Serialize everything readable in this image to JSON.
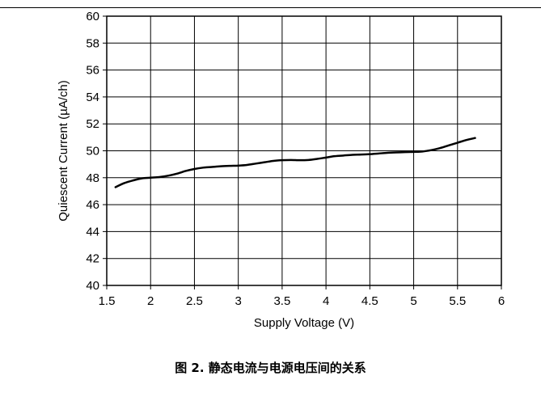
{
  "caption": "图 2. 静态电流与电源电压间的关系",
  "chart_data": {
    "type": "line",
    "title": "",
    "xlabel": "Supply Voltage (V)",
    "ylabel": "Quiescent Current (µA/ch)",
    "xlim": [
      1.5,
      6
    ],
    "ylim": [
      40,
      60
    ],
    "x_ticks": [
      1.5,
      2,
      2.5,
      3,
      3.5,
      4,
      4.5,
      5,
      5.5,
      6
    ],
    "x_tick_labels": [
      "1.5",
      "2",
      "2.5",
      "3",
      "3.5",
      "4",
      "4.5",
      "5",
      "5.5",
      "6"
    ],
    "y_ticks": [
      40,
      42,
      44,
      46,
      48,
      50,
      52,
      54,
      56,
      58,
      60
    ],
    "y_tick_labels": [
      "40",
      "42",
      "44",
      "46",
      "48",
      "50",
      "52",
      "54",
      "56",
      "58",
      "60"
    ],
    "grid": true,
    "series": [
      {
        "color": "#000000",
        "x": [
          1.6,
          1.7,
          1.8,
          1.9,
          2.0,
          2.1,
          2.2,
          2.3,
          2.4,
          2.5,
          2.6,
          2.7,
          2.8,
          2.9,
          3.0,
          3.1,
          3.2,
          3.3,
          3.4,
          3.5,
          3.6,
          3.7,
          3.8,
          3.9,
          4.0,
          4.1,
          4.2,
          4.3,
          4.4,
          4.5,
          4.6,
          4.7,
          4.8,
          4.9,
          5.0,
          5.1,
          5.2,
          5.3,
          5.4,
          5.5,
          5.6,
          5.7
        ],
        "values": [
          47.3,
          47.6,
          47.8,
          47.95,
          48.0,
          48.05,
          48.15,
          48.3,
          48.5,
          48.65,
          48.75,
          48.8,
          48.85,
          48.88,
          48.9,
          48.95,
          49.05,
          49.15,
          49.25,
          49.3,
          49.32,
          49.3,
          49.32,
          49.4,
          49.5,
          49.6,
          49.65,
          49.7,
          49.72,
          49.75,
          49.8,
          49.85,
          49.88,
          49.9,
          49.92,
          49.95,
          50.05,
          50.2,
          50.4,
          50.6,
          50.8,
          50.95
        ]
      }
    ]
  }
}
